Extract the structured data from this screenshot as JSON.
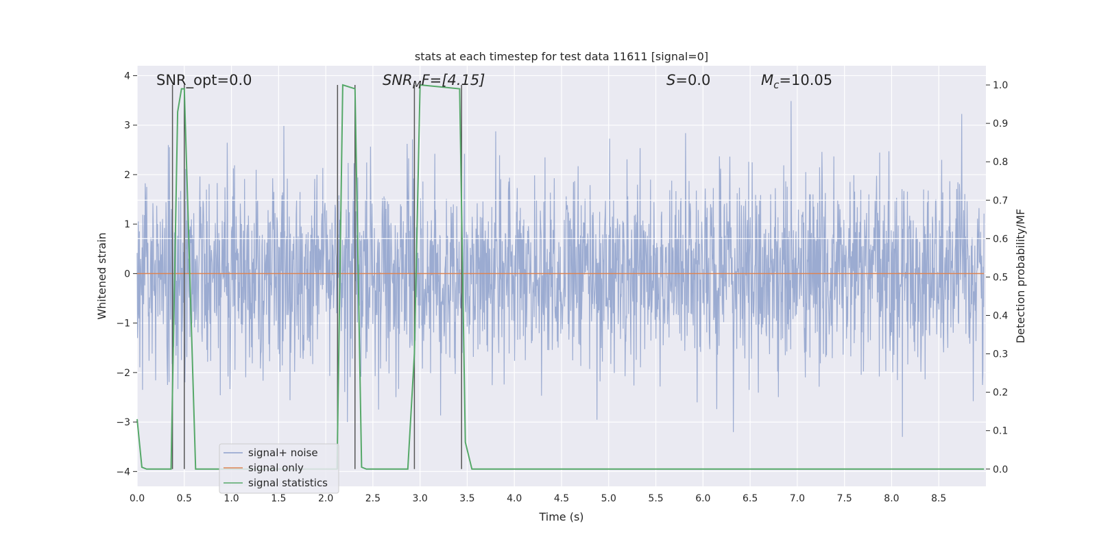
{
  "chart_data": {
    "type": "line",
    "title": "stats at each timestep for test data 11611 [signal=0]",
    "xlabel": "Time (s)",
    "ylabel_left": "Whitened strain",
    "ylabel_right": "Detection probability/MF",
    "xlim": [
      0.0,
      9.0
    ],
    "ylim_left": [
      -4.3,
      4.2
    ],
    "ylim_right": [
      -0.045,
      1.05
    ],
    "x_ticks": [
      "0.0",
      "0.5",
      "1.0",
      "1.5",
      "2.0",
      "2.5",
      "3.0",
      "3.5",
      "4.0",
      "4.5",
      "5.0",
      "5.5",
      "6.0",
      "6.5",
      "7.0",
      "7.5",
      "8.0",
      "8.5"
    ],
    "y_ticks_left": [
      "−4",
      "−3",
      "−2",
      "−1",
      "0",
      "1",
      "2",
      "3",
      "4"
    ],
    "y_ticks_right": [
      "0.0",
      "0.1",
      "0.2",
      "0.3",
      "0.4",
      "0.5",
      "0.6",
      "0.7",
      "0.8",
      "0.9",
      "1.0"
    ],
    "grid": true,
    "annotations": [
      {
        "id": "snr_opt",
        "text": "SNR_opt=0.0"
      },
      {
        "id": "snr_mf",
        "text": "SNR_MF=[4.15]",
        "math_base": "SNR",
        "math_sub": "M",
        "math_rest": "F=[4.15]"
      },
      {
        "id": "s",
        "text": "S=0.0",
        "math_base": "S",
        "math_rest": "=0.0"
      },
      {
        "id": "mc",
        "text": "M_c=10.05",
        "math_base": "M",
        "math_sub": "c",
        "math_rest": "=10.05"
      }
    ],
    "legend": {
      "placement": "lower-left",
      "entries": [
        {
          "label": "signal+ noise",
          "color": "#8da0cb"
        },
        {
          "label": "signal only",
          "color": "#dd8452"
        },
        {
          "label": "signal statistics",
          "color": "#55a868"
        }
      ]
    },
    "series": [
      {
        "name": "signal+ noise",
        "axis": "left",
        "color": "#8da0cb",
        "kind": "noise",
        "typical_amplitude": 1.6,
        "max": 3.85,
        "min": -4.0
      },
      {
        "name": "signal only",
        "axis": "left",
        "color": "#dd8452",
        "x": [
          0.0,
          8.98
        ],
        "y": [
          0.0,
          0.0
        ]
      },
      {
        "name": "signal statistics",
        "axis": "right",
        "color": "#55a868",
        "x": [
          0.0,
          0.05,
          0.1,
          0.36,
          0.43,
          0.47,
          0.5,
          0.62,
          2.12,
          2.18,
          2.31,
          2.38,
          2.43,
          2.87,
          2.94,
          3.0,
          3.42,
          3.48,
          3.55,
          8.98
        ],
        "y": [
          0.13,
          0.005,
          0.0,
          0.0,
          0.93,
          0.99,
          0.99,
          0.0,
          0.0,
          1.0,
          0.99,
          0.005,
          0.0,
          0.0,
          0.3,
          1.0,
          0.99,
          0.07,
          0.0,
          0.0
        ]
      }
    ],
    "vlines": {
      "color": "#555555",
      "x": [
        0.375,
        0.5,
        2.125,
        2.31,
        2.94,
        3.44
      ]
    },
    "hlines": {
      "color": "#ffffff",
      "y_right": [
        0.6,
        0.7
      ]
    }
  }
}
